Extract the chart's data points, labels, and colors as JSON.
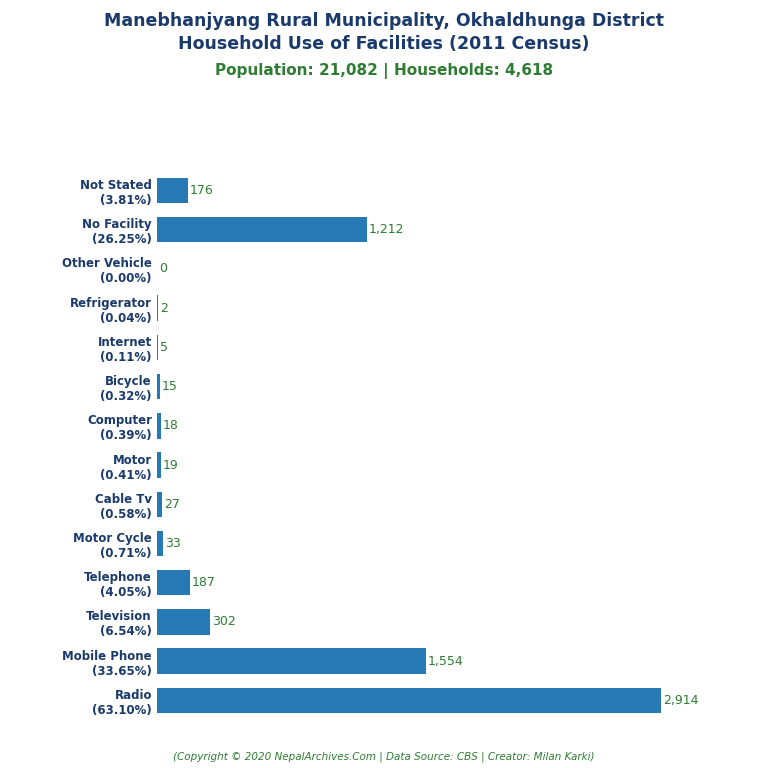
{
  "title_line1": "Manebhanjyang Rural Municipality, Okhaldhunga District",
  "title_line2": "Household Use of Facilities (2011 Census)",
  "subtitle": "Population: 21,082 | Households: 4,618",
  "footer": "(Copyright © 2020 NepalArchives.Com | Data Source: CBS | Creator: Milan Karki)",
  "categories": [
    "Radio\n(63.10%)",
    "Mobile Phone\n(33.65%)",
    "Television\n(6.54%)",
    "Telephone\n(4.05%)",
    "Motor Cycle\n(0.71%)",
    "Cable Tv\n(0.58%)",
    "Motor\n(0.41%)",
    "Computer\n(0.39%)",
    "Bicycle\n(0.32%)",
    "Internet\n(0.11%)",
    "Refrigerator\n(0.04%)",
    "Other Vehicle\n(0.00%)",
    "No Facility\n(26.25%)",
    "Not Stated\n(3.81%)"
  ],
  "values": [
    2914,
    1554,
    302,
    187,
    33,
    27,
    19,
    18,
    15,
    5,
    2,
    0,
    1212,
    176
  ],
  "bar_color": "#2779b5",
  "title_color": "#1a3a6b",
  "subtitle_color": "#2e7d32",
  "value_color": "#2e7d32",
  "footer_color": "#2e7d32",
  "background_color": "#ffffff",
  "xlim": [
    0,
    3200
  ]
}
